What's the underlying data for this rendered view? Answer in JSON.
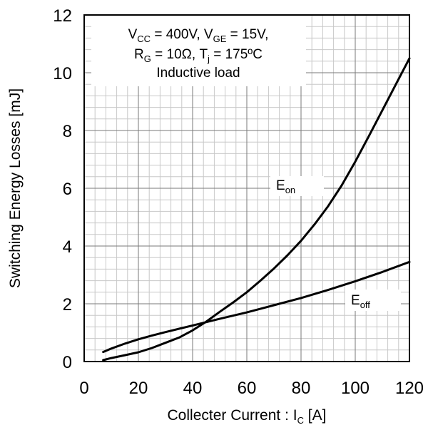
{
  "chart_data": {
    "type": "line",
    "xlabel": "Collecter Current : I",
    "xlabel_sub": "C",
    "xlabel_unit": " [A]",
    "ylabel": "Switching Energy Losses [mJ]",
    "xlim": [
      0,
      120
    ],
    "ylim": [
      0,
      12
    ],
    "x_ticks": [
      0,
      20,
      40,
      60,
      80,
      100,
      120
    ],
    "y_ticks": [
      0,
      2,
      4,
      6,
      8,
      10,
      12
    ],
    "grid": true,
    "annotation": {
      "line1": {
        "a": "V",
        "a_sub": "CC",
        "b": " = 400V, V",
        "b_sub": "GE",
        "c": " = 15V,"
      },
      "line2": {
        "a": "R",
        "a_sub": "G",
        "b": " = 10Ω, T",
        "b_sub": "j",
        "c": " = 175ºC"
      },
      "line3": "Inductive load"
    },
    "series": [
      {
        "name": "E",
        "name_sub": "on",
        "x": [
          7,
          10,
          15,
          20,
          25,
          30,
          35,
          40,
          45,
          50,
          55,
          60,
          65,
          70,
          75,
          80,
          85,
          90,
          95,
          100,
          105,
          110,
          115,
          120
        ],
        "y": [
          0.05,
          0.12,
          0.22,
          0.32,
          0.47,
          0.65,
          0.83,
          1.08,
          1.38,
          1.72,
          2.05,
          2.4,
          2.8,
          3.22,
          3.68,
          4.18,
          4.75,
          5.38,
          6.1,
          6.92,
          7.8,
          8.7,
          9.6,
          10.5
        ]
      },
      {
        "name": "E",
        "name_sub": "off",
        "x": [
          7,
          10,
          15,
          20,
          25,
          30,
          40,
          50,
          60,
          70,
          80,
          90,
          100,
          110,
          120
        ],
        "y": [
          0.33,
          0.45,
          0.62,
          0.77,
          0.9,
          1.02,
          1.25,
          1.48,
          1.7,
          1.95,
          2.2,
          2.48,
          2.78,
          3.1,
          3.45
        ]
      }
    ]
  }
}
